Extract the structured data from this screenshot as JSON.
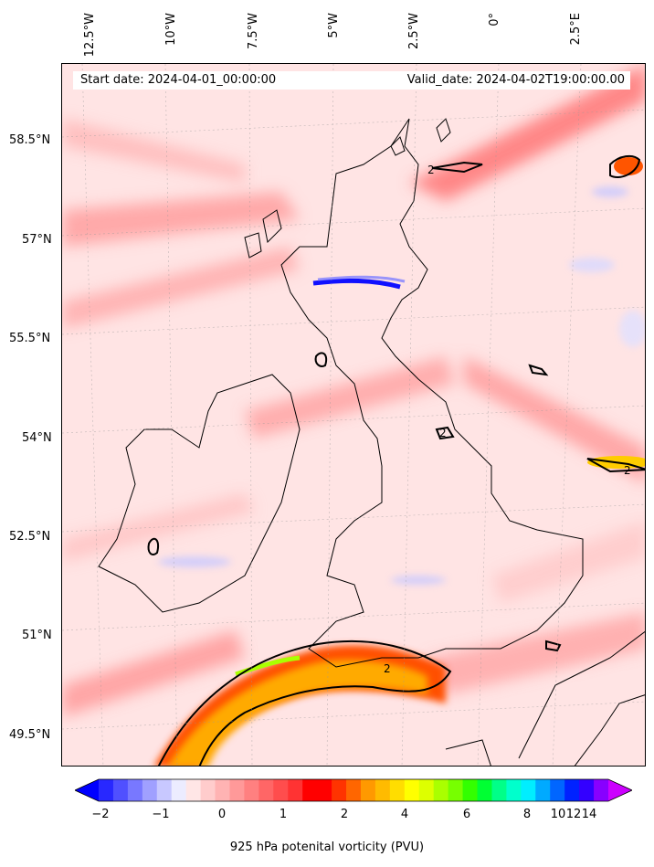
{
  "map": {
    "start_label": "Start date: 2024-04-01_00:00:00",
    "valid_label": "Valid_date: 2024-04-02T19:00:00.00",
    "longitude_labels": [
      "12.5°W",
      "10°W",
      "7.5°W",
      "5°W",
      "2.5°W",
      "0°",
      "2.5°E"
    ],
    "latitude_labels": [
      "58.5°N",
      "57°N",
      "55.5°N",
      "54°N",
      "52.5°N",
      "51°N",
      "49.5°N"
    ],
    "contour_label": "2",
    "colors": {
      "ocean_land_low": "#ffe6e6",
      "high": "#ff0000",
      "coast": "#000000"
    }
  },
  "colorbar": {
    "label": "925 hPa potenital vorticity (PVU)",
    "tick_labels": [
      "−2",
      "−1",
      "0",
      "1",
      "2",
      "4",
      "6",
      "8",
      "10",
      "12",
      "14"
    ],
    "colors": [
      "#0000ff",
      "#2828ff",
      "#5050ff",
      "#7878ff",
      "#a0a0ff",
      "#c8c8ff",
      "#ececff",
      "#ffe6e6",
      "#ffcccc",
      "#ffb3b3",
      "#ff9999",
      "#ff8080",
      "#ff6666",
      "#ff4d4d",
      "#ff3333",
      "#ff0000",
      "#ff0000",
      "#ff3300",
      "#ff6600",
      "#ff9900",
      "#ffbb00",
      "#ffdd00",
      "#ffff00",
      "#ddff00",
      "#aaff00",
      "#77ff00",
      "#33ff00",
      "#00ff33",
      "#00ff88",
      "#00ffcc",
      "#00eeff",
      "#00aaff",
      "#0066ff",
      "#0022ff",
      "#3300ff",
      "#8800ff",
      "#cc00ff"
    ]
  }
}
